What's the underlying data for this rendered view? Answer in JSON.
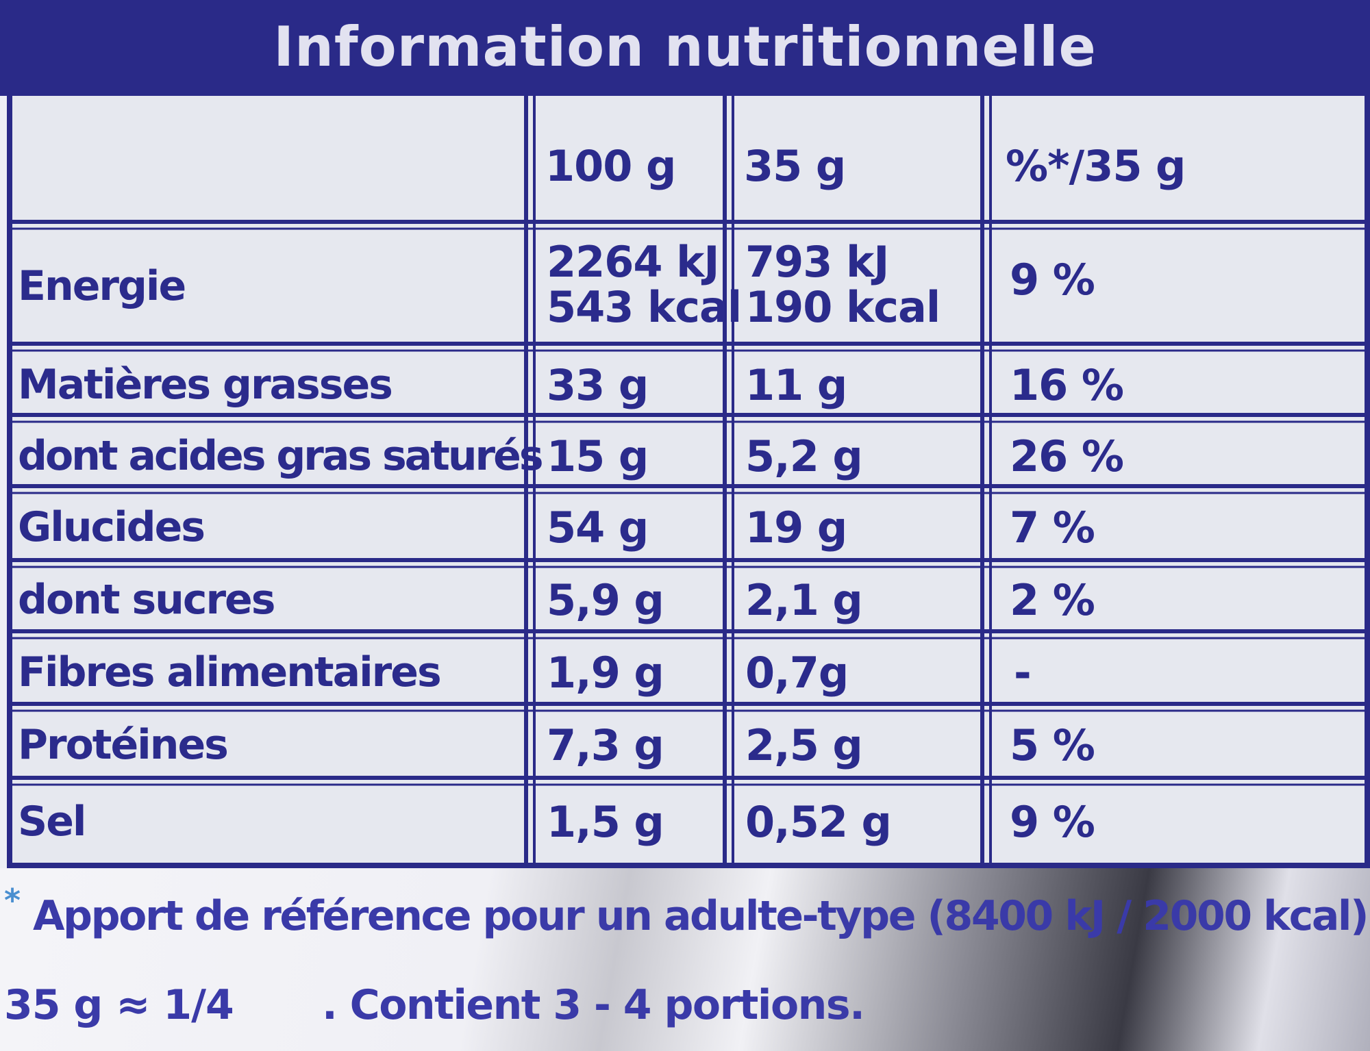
{
  "header": {
    "title": "Information nutritionnelle"
  },
  "table": {
    "columns": [
      "",
      "100 g",
      "35 g",
      "%*/35 g"
    ],
    "rows": [
      {
        "label": "Energie",
        "per100": "2264 kJ\n543 kcal",
        "per35": "793 kJ\n190 kcal",
        "pct": "9 %"
      },
      {
        "label": "Matières grasses",
        "per100": "33 g",
        "per35": "11 g",
        "pct": "16 %"
      },
      {
        "label": "dont acides gras saturés",
        "per100": "15 g",
        "per35": "5,2 g",
        "pct": "26 %"
      },
      {
        "label": "Glucides",
        "per100": "54 g",
        "per35": "19 g",
        "pct": "7 %"
      },
      {
        "label": "dont sucres",
        "per100": "5,9 g",
        "per35": "2,1 g",
        "pct": "2 %"
      },
      {
        "label": "Fibres alimentaires",
        "per100": "1,9 g",
        "per35": "0,7g",
        "pct": "-"
      },
      {
        "label": "Protéines",
        "per100": "7,3 g",
        "per35": "2,5 g",
        "pct": "5 %"
      },
      {
        "label": "Sel",
        "per100": "1,5 g",
        "per35": "0,52 g",
        "pct": "9 %"
      }
    ]
  },
  "footer": {
    "asterisk": "*",
    "reference": "Apport de référence pour un adulte-type (8400 kJ / 2000 kcal).",
    "portion_a": "35 g ≈ 1/4",
    "portion_b": ". Contient 3 - 4 portions."
  },
  "colors": {
    "navy": "#2a2a88",
    "text": "#2b2b8c",
    "panel": "#e6e8ef"
  }
}
